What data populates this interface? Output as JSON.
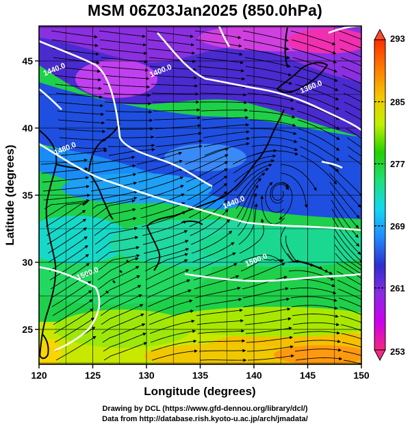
{
  "title": "MSM 06Z03Jan2025 (850.0hPa)",
  "credits": [
    "Drawing by DCL (https://www.gfd-dennou.org/library/dcl/)",
    "Data from http://database.rish.kyoto-u.ac.jp/arch/jmadata/"
  ],
  "map": {
    "xlabel": "Longitude (degrees)",
    "ylabel": "Latitude (degrees)",
    "xlim": [
      120,
      150
    ],
    "ylim": [
      22.4,
      47.6
    ],
    "x_ticks": [
      120,
      125,
      130,
      135,
      140,
      145,
      150
    ],
    "y_ticks": [
      25,
      30,
      35,
      40,
      45
    ],
    "grid": true,
    "field": "temperature (K), streamlines of wind",
    "contour_labels": [
      {
        "text": "1440.0",
        "lon": 121.5,
        "lat": 44.2
      },
      {
        "text": "1400.0",
        "lon": 131.4,
        "lat": 44.1
      },
      {
        "text": "1360.0",
        "lon": 145.4,
        "lat": 42.9
      },
      {
        "text": "1480.0",
        "lon": 122.5,
        "lat": 38.3
      },
      {
        "text": "1440.0",
        "lon": 138.2,
        "lat": 34.3
      },
      {
        "text": "1500.0",
        "lon": 140.3,
        "lat": 30.0
      },
      {
        "text": "1500.0",
        "lon": 124.6,
        "lat": 29.0
      }
    ]
  },
  "colorbar": {
    "min": 253,
    "max": 293,
    "labels": [
      293,
      285,
      277,
      269,
      261,
      253
    ],
    "colors": [
      "#f7277d",
      "#cc00ee",
      "#8a2be2",
      "#2e2fd0",
      "#1f8cff",
      "#12d8f0",
      "#1ee07a",
      "#22d000",
      "#c0f000",
      "#f6c400",
      "#ff7a00",
      "#ff2d00"
    ]
  }
}
